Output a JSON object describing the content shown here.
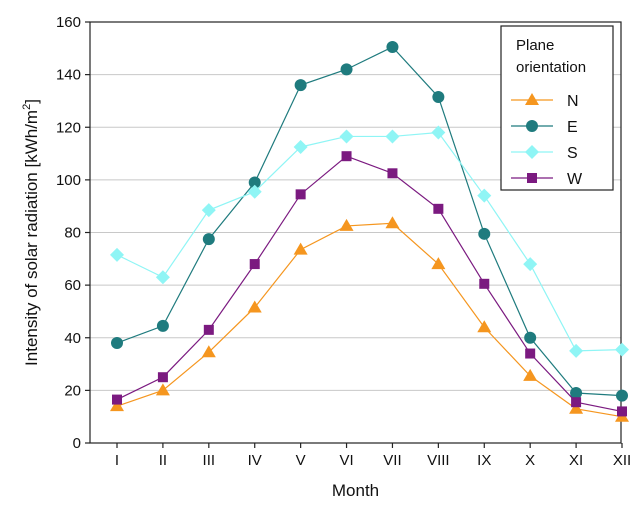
{
  "chart_data": {
    "type": "line",
    "xlabel": "Month",
    "ylabel": {
      "main": "Intensity of solar radiation [kWh/m",
      "sup": "2",
      "end": "]"
    },
    "categories": [
      "I",
      "II",
      "III",
      "IV",
      "V",
      "VI",
      "VII",
      "VIII",
      "IX",
      "X",
      "XI",
      "XII"
    ],
    "ylim": [
      0,
      160
    ],
    "yticks": [
      0,
      20,
      40,
      60,
      80,
      100,
      120,
      140,
      160
    ],
    "grid": true,
    "legend": {
      "title_lines": [
        "Plane",
        "orientation"
      ],
      "position": "top-right"
    },
    "series": [
      {
        "name": "N",
        "color": "#f5961f",
        "marker": "triangle",
        "values": [
          14,
          20,
          34.5,
          51.5,
          73.5,
          82.5,
          83.5,
          68,
          44,
          25.5,
          13,
          10
        ]
      },
      {
        "name": "E",
        "color": "#1f7b7e",
        "marker": "circle",
        "values": [
          38,
          44.5,
          77.5,
          99,
          136,
          142,
          150.5,
          131.5,
          79.5,
          40,
          19,
          18
        ]
      },
      {
        "name": "S",
        "color": "#8ff5f5",
        "marker": "diamond",
        "values": [
          71.5,
          63,
          88.5,
          95.5,
          112.5,
          116.5,
          116.5,
          118,
          94,
          68,
          35,
          35.5
        ]
      },
      {
        "name": "W",
        "color": "#7b1a80",
        "marker": "square",
        "values": [
          16.5,
          25,
          43,
          68,
          94.5,
          109,
          102.5,
          89,
          60.5,
          34,
          15.5,
          12
        ]
      }
    ]
  }
}
